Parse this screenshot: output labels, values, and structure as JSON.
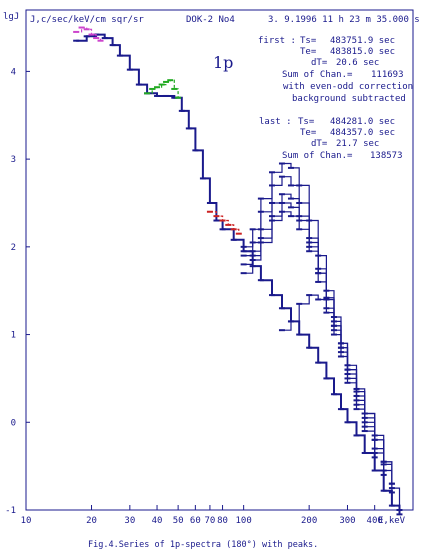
{
  "chart_data": {
    "type": "line",
    "xscale": "log",
    "xlim": [
      10,
      600
    ],
    "ylim": [
      -1,
      4.7
    ],
    "xlabel": "E,keV",
    "ylabel": "lgJ",
    "units_label": "J,c/sec/keV/cm sqr/sr",
    "instrument": "DOK-2 No4",
    "datetime": "3. 9.1996 11 h 23 m 35.000 s",
    "particle": "1p",
    "x_ticks": [
      "10",
      "20",
      "30",
      "40",
      "50",
      "60",
      "70",
      "80",
      "100",
      "200",
      "300",
      "400"
    ],
    "x_tick_values": [
      10,
      20,
      30,
      40,
      50,
      60,
      70,
      80,
      100,
      200,
      300,
      400
    ],
    "y_ticks": [
      "4",
      "3",
      "2",
      "1",
      "0",
      "-1"
    ],
    "y_tick_values": [
      4,
      3,
      2,
      1,
      0,
      -1
    ],
    "caption": "Fig.4.Series of 1p-spectra (180°) with peaks.",
    "info_first": {
      "label": "first :",
      "ts_label": "Ts=",
      "ts": "483751.9 sec",
      "te_label": "Te=",
      "te": "483815.0 sec",
      "dt_label": "dT=",
      "dt": "20.6 sec",
      "sum_label": "Sum of Chan.=",
      "sum": "111693",
      "note1": "with even-odd correction",
      "note2": "background subtracted"
    },
    "info_last": {
      "label": "last :",
      "ts_label": "Ts=",
      "ts": "484281.0 sec",
      "te_label": "Te=",
      "te": "484357.0 sec",
      "dt_label": "dT=",
      "dt": "21.7 sec",
      "sum_label": "Sum of Chan.=",
      "sum": "138573"
    },
    "series": [
      {
        "color": "#1a1a8c",
        "x": [
          17,
          19,
          21,
          23,
          25,
          27,
          30,
          33,
          36,
          40,
          44,
          48,
          52,
          56,
          60,
          65,
          70,
          75,
          80,
          90,
          100,
          110,
          120,
          135,
          150,
          165,
          180,
          200,
          220,
          240,
          260,
          280,
          300,
          330,
          360,
          400,
          440,
          480,
          520
        ],
        "y": [
          4.35,
          4.4,
          4.42,
          4.38,
          4.3,
          4.18,
          4.02,
          3.85,
          3.75,
          3.72,
          3.72,
          3.7,
          3.55,
          3.35,
          3.1,
          2.78,
          2.5,
          2.3,
          2.2,
          2.08,
          1.95,
          1.78,
          1.62,
          1.45,
          1.3,
          1.15,
          1.0,
          0.85,
          0.68,
          0.5,
          0.32,
          0.15,
          0.0,
          -0.15,
          -0.35,
          -0.55,
          -0.78,
          -0.95,
          -1.05
        ]
      },
      {
        "color": "#1a1a8c",
        "x": [
          100,
          110,
          120,
          135,
          150,
          165,
          180,
          200,
          220,
          240,
          260,
          280,
          300,
          330,
          360,
          400,
          440,
          480
        ],
        "y": [
          2.0,
          2.2,
          2.55,
          2.85,
          2.95,
          2.9,
          2.7,
          2.3,
          1.9,
          1.5,
          1.2,
          0.9,
          0.6,
          0.3,
          0.05,
          -0.2,
          -0.45,
          -0.7
        ]
      },
      {
        "color": "#1a1a8c",
        "x": [
          100,
          110,
          120,
          135,
          150,
          165,
          180,
          200,
          220,
          240,
          260,
          280,
          300,
          330,
          360,
          400,
          440
        ],
        "y": [
          1.9,
          2.05,
          2.4,
          2.7,
          2.8,
          2.7,
          2.5,
          2.1,
          1.75,
          1.4,
          1.1,
          0.8,
          0.5,
          0.2,
          -0.05,
          -0.35,
          -0.6
        ]
      },
      {
        "color": "#1a1a8c",
        "x": [
          100,
          110,
          120,
          135,
          150,
          165,
          180,
          200,
          220,
          240,
          260,
          280,
          300,
          330,
          360,
          400,
          440,
          480
        ],
        "y": [
          1.8,
          1.95,
          2.2,
          2.5,
          2.6,
          2.55,
          2.35,
          2.05,
          1.7,
          1.4,
          1.1,
          0.85,
          0.55,
          0.25,
          0.0,
          -0.3,
          -0.55,
          -0.8
        ]
      },
      {
        "color": "#1a1a8c",
        "x": [
          100,
          110,
          120,
          135,
          150,
          165,
          180,
          200,
          220,
          240,
          260,
          280,
          300,
          330,
          360,
          400
        ],
        "y": [
          1.7,
          1.85,
          2.05,
          2.3,
          2.4,
          2.35,
          2.2,
          1.95,
          1.6,
          1.3,
          1.0,
          0.75,
          0.45,
          0.15,
          -0.1,
          -0.4
        ]
      },
      {
        "color": "#1a1a8c",
        "x": [
          110,
          120,
          135,
          150,
          165,
          180,
          200,
          220,
          240,
          260,
          280,
          300,
          330,
          360,
          400,
          440,
          480,
          520
        ],
        "y": [
          1.9,
          2.1,
          2.35,
          2.5,
          2.45,
          2.3,
          2.0,
          1.7,
          1.42,
          1.15,
          0.9,
          0.65,
          0.38,
          0.1,
          -0.2,
          -0.48,
          -0.75,
          -1.0
        ]
      },
      {
        "color": "#1a1a8c",
        "x": [
          150,
          165,
          180,
          200,
          220,
          240,
          260,
          280,
          300,
          330,
          360,
          400,
          440,
          480
        ],
        "y": [
          1.05,
          1.15,
          1.35,
          1.45,
          1.4,
          1.25,
          1.05,
          0.85,
          0.6,
          0.35,
          0.1,
          -0.15,
          -0.45,
          -0.7
        ]
      },
      {
        "color": "#cc44cc",
        "x": [
          17,
          18,
          19,
          20,
          21,
          22
        ],
        "y": [
          4.45,
          4.5,
          4.48,
          4.42,
          4.38,
          4.35
        ]
      },
      {
        "color": "#22aa22",
        "x": [
          36,
          38,
          40,
          42,
          44,
          46,
          48,
          50
        ],
        "y": [
          3.75,
          3.8,
          3.82,
          3.85,
          3.88,
          3.9,
          3.8,
          3.7
        ]
      },
      {
        "color": "#cc2222",
        "x": [
          70,
          75,
          80,
          85,
          90,
          95
        ],
        "y": [
          2.4,
          2.35,
          2.3,
          2.25,
          2.2,
          2.15
        ]
      }
    ]
  }
}
